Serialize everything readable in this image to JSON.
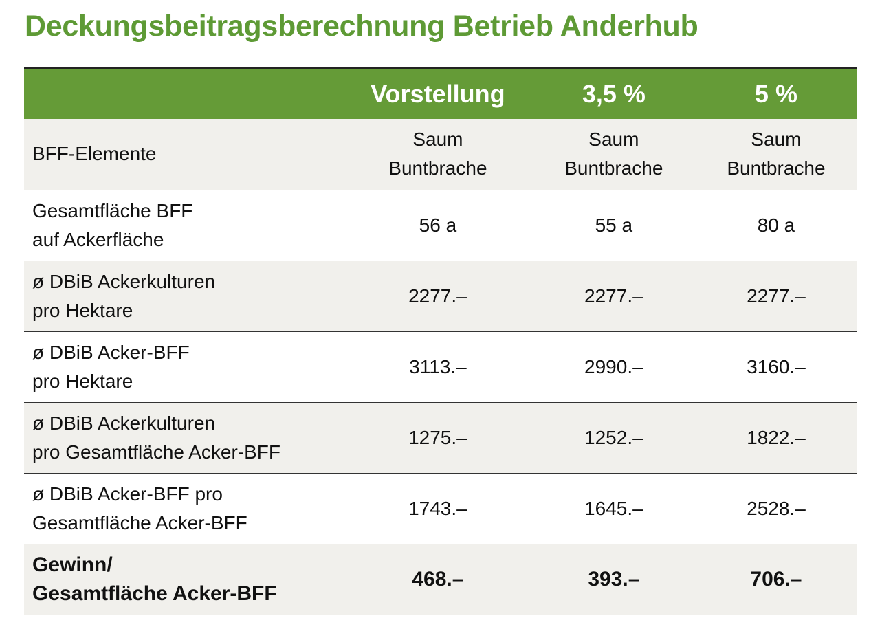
{
  "title": "Deckungsbeitragsberechnung Betrieb Anderhub",
  "table": {
    "columns": [
      "Vorstellung",
      "3,5 %",
      "5 %"
    ],
    "rows": [
      {
        "label": [
          "BFF-Elemente"
        ],
        "values": [
          [
            "Saum",
            "Buntbrache"
          ],
          [
            "Saum",
            "Buntbrache"
          ],
          [
            "Saum",
            "Buntbrache"
          ]
        ]
      },
      {
        "label": [
          "Gesamtfläche BFF",
          "auf Ackerfläche"
        ],
        "values": [
          [
            "56 a"
          ],
          [
            "55 a"
          ],
          [
            "80 a"
          ]
        ]
      },
      {
        "label": [
          "ø DBiB Ackerkulturen",
          "pro Hektare"
        ],
        "values": [
          [
            "2277.–"
          ],
          [
            "2277.–"
          ],
          [
            "2277.–"
          ]
        ]
      },
      {
        "label": [
          "ø DBiB Acker-BFF",
          "pro Hektare"
        ],
        "values": [
          [
            "3113.–"
          ],
          [
            "2990.–"
          ],
          [
            "3160.–"
          ]
        ]
      },
      {
        "label": [
          "ø DBiB Ackerkulturen",
          "pro Gesamtfläche Acker-BFF"
        ],
        "values": [
          [
            "1275.–"
          ],
          [
            "1252.–"
          ],
          [
            "1822.–"
          ]
        ]
      },
      {
        "label": [
          "ø DBiB Acker-BFF pro",
          "Gesamtfläche Acker-BFF"
        ],
        "values": [
          [
            "1743.–"
          ],
          [
            "1645.–"
          ],
          [
            "2528.–"
          ]
        ]
      },
      {
        "label": [
          "Gewinn/",
          "Gesamtfläche Acker-BFF"
        ],
        "values": [
          [
            "468.–"
          ],
          [
            "393.–"
          ],
          [
            "706.–"
          ]
        ]
      }
    ]
  }
}
